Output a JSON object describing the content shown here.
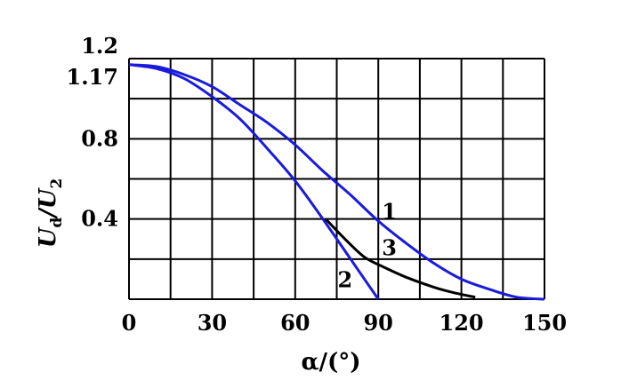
{
  "chart_data": {
    "type": "line",
    "title": "",
    "xlabel": "α/(°)",
    "ylabel": {
      "main": "U",
      "sub1": "d",
      "sep": "/U",
      "sub2": "2"
    },
    "xlim": [
      0,
      150
    ],
    "ylim": [
      0,
      1.2
    ],
    "grid": true,
    "x_ticks": [
      {
        "value": 0,
        "label": "0"
      },
      {
        "value": 30,
        "label": "30"
      },
      {
        "value": 60,
        "label": "60"
      },
      {
        "value": 90,
        "label": "90"
      },
      {
        "value": 120,
        "label": "120"
      },
      {
        "value": 150,
        "label": "150"
      }
    ],
    "y_ticks": [
      {
        "value": 0.4,
        "label": "0.4"
      },
      {
        "value": 0.8,
        "label": "0.8"
      },
      {
        "value": 1.17,
        "label": "1.17"
      },
      {
        "value": 1.2,
        "label": "1.2"
      }
    ],
    "series": [
      {
        "name": "1",
        "color": "#1a1adc",
        "x": [
          0,
          10,
          20,
          30,
          40,
          50,
          60,
          70,
          80,
          90,
          100,
          110,
          120,
          130,
          140,
          150
        ],
        "y": [
          1.17,
          1.16,
          1.12,
          1.06,
          0.97,
          0.88,
          0.77,
          0.64,
          0.52,
          0.39,
          0.28,
          0.18,
          0.1,
          0.05,
          0.01,
          0.0
        ],
        "label_at": {
          "x": 94,
          "y": 0.4
        }
      },
      {
        "name": "2",
        "color": "#1a1adc",
        "x": [
          0,
          10,
          20,
          30,
          40,
          50,
          60,
          70,
          80,
          90
        ],
        "y": [
          1.17,
          1.15,
          1.1,
          1.01,
          0.9,
          0.75,
          0.59,
          0.4,
          0.2,
          0.0
        ],
        "label_at": {
          "x": 78,
          "y": 0.06
        }
      },
      {
        "name": "3",
        "color": "#000000",
        "x": [
          71,
          78,
          85,
          92,
          100,
          110,
          118,
          125
        ],
        "y": [
          0.4,
          0.3,
          0.21,
          0.16,
          0.11,
          0.06,
          0.03,
          0.01
        ],
        "label_at": {
          "x": 94,
          "y": 0.22
        }
      }
    ]
  }
}
